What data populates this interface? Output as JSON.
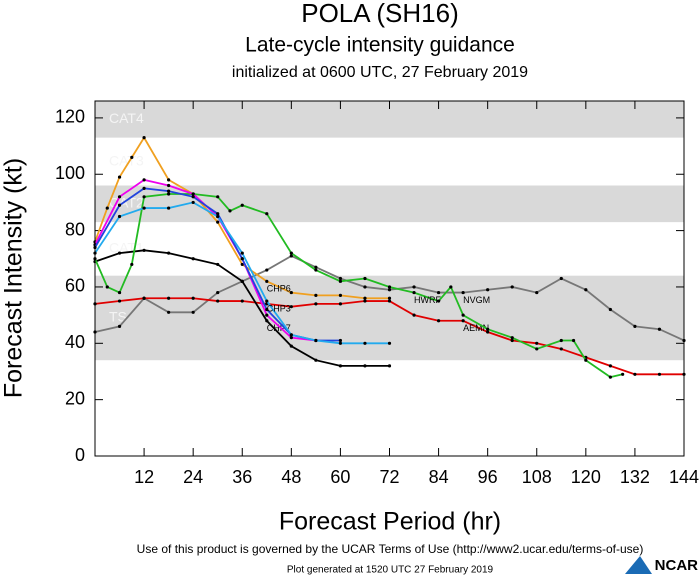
{
  "chart_data": {
    "type": "line",
    "title": "POLA (SH16)",
    "subtitle": "Late-cycle intensity guidance",
    "initialized": "initialized at 0600 UTC, 27 February 2019",
    "x_label": "Forecast Period (hr)",
    "y_label": "Forecast Intensity (kt)",
    "xlim": [
      0,
      144
    ],
    "ylim": [
      0,
      126
    ],
    "xticks": [
      12,
      24,
      36,
      48,
      60,
      72,
      84,
      96,
      108,
      120,
      132,
      144
    ],
    "yticks": [
      0,
      20,
      40,
      60,
      80,
      100,
      120
    ],
    "bands": [
      {
        "label": "CAT4",
        "range": [
          113,
          126
        ],
        "shaded": true
      },
      {
        "label": "CAT3",
        "range": [
          96,
          113
        ],
        "shaded": false
      },
      {
        "label": "CAT2",
        "range": [
          83,
          96
        ],
        "shaded": true
      },
      {
        "label": "CAT1",
        "range": [
          64,
          83
        ],
        "shaded": false
      },
      {
        "label": "TS",
        "range": [
          34,
          64
        ],
        "shaded": true
      }
    ],
    "series": [
      {
        "name": "NVGM",
        "color": "#777777",
        "x": [
          0,
          6,
          12,
          18,
          24,
          30,
          36,
          42,
          48,
          54,
          60,
          66,
          72,
          78,
          84,
          90,
          96,
          102,
          108,
          114,
          120,
          126,
          132,
          138,
          144
        ],
        "values": [
          44,
          46,
          56,
          51,
          51,
          58,
          62,
          66,
          71,
          67,
          63,
          60,
          59,
          60,
          58,
          58,
          59,
          60,
          58,
          63,
          59,
          52,
          46,
          45,
          41
        ]
      },
      {
        "name": "AEMN",
        "color": "#e00000",
        "x": [
          0,
          6,
          12,
          18,
          24,
          30,
          36,
          42,
          48,
          54,
          60,
          66,
          72,
          78,
          84,
          90,
          96,
          102,
          108,
          114,
          120,
          126,
          132,
          138,
          144
        ],
        "values": [
          54,
          55,
          56,
          56,
          56,
          55,
          55,
          54,
          53,
          54,
          54,
          55,
          55,
          50,
          48,
          48,
          44,
          41,
          40,
          38,
          35,
          32,
          29,
          29,
          29
        ]
      },
      {
        "name": "CHP7",
        "color": "#000000",
        "x": [
          0,
          6,
          12,
          18,
          24,
          30,
          36,
          42,
          48,
          54,
          60,
          66,
          72
        ],
        "values": [
          69,
          72,
          73,
          72,
          70,
          68,
          62,
          48,
          39,
          34,
          32,
          32,
          32
        ]
      },
      {
        "name": "HWRF",
        "color": "#22bb22",
        "x": [
          0,
          3,
          6,
          9,
          12,
          18,
          24,
          30,
          33,
          36,
          42,
          48,
          54,
          60,
          66,
          72,
          78,
          84,
          87,
          90,
          96,
          102,
          108,
          114,
          117,
          120,
          126,
          129
        ],
        "values": [
          70,
          60,
          58,
          68,
          92,
          93,
          93,
          92,
          87,
          89,
          86,
          72,
          66,
          62,
          63,
          60,
          58,
          55,
          60,
          50,
          45,
          42,
          38,
          41,
          41,
          34,
          28,
          29
        ]
      },
      {
        "name": "CHP6",
        "color": "#f0a020",
        "x": [
          0,
          3,
          6,
          9,
          12,
          18,
          24,
          30,
          36,
          42,
          48,
          54,
          60,
          66,
          72
        ],
        "values": [
          76,
          88,
          99,
          106,
          113,
          98,
          93,
          83,
          68,
          62,
          58,
          57,
          57,
          56,
          56
        ]
      },
      {
        "color": "#ee00ee",
        "x": [
          0,
          6,
          12,
          18,
          24,
          30,
          36,
          42,
          48,
          54
        ],
        "values": [
          75,
          92,
          98,
          96,
          93,
          85,
          70,
          50,
          42,
          41
        ]
      },
      {
        "color": "#2244dd",
        "x": [
          0,
          6,
          12,
          18,
          24,
          30,
          36,
          42,
          48,
          54,
          60
        ],
        "values": [
          74,
          89,
          95,
          94,
          92,
          86,
          70,
          52,
          43,
          41,
          41
        ]
      },
      {
        "name": "CHP3",
        "color": "#22aaee",
        "x": [
          0,
          6,
          12,
          18,
          24,
          30,
          36,
          42,
          48,
          54,
          60,
          66,
          72
        ],
        "values": [
          72,
          85,
          88,
          88,
          90,
          85,
          72,
          55,
          43,
          41,
          40,
          40,
          40
        ]
      }
    ],
    "terms": "Use of this product is governed by the UCAR Terms of Use (http://www2.ucar.edu/terms-of-use)",
    "generated": "Plot generated at 1520 UTC  27 February 2019",
    "logo": "NCAR"
  }
}
